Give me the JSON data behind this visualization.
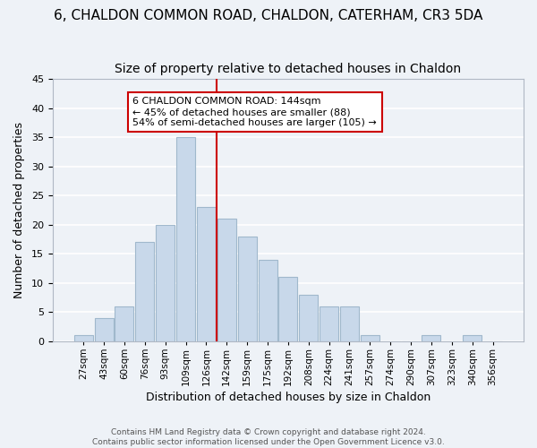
{
  "title": "6, CHALDON COMMON ROAD, CHALDON, CATERHAM, CR3 5DA",
  "subtitle": "Size of property relative to detached houses in Chaldon",
  "xlabel": "Distribution of detached houses by size in Chaldon",
  "ylabel": "Number of detached properties",
  "bar_labels": [
    "27sqm",
    "43sqm",
    "60sqm",
    "76sqm",
    "93sqm",
    "109sqm",
    "126sqm",
    "142sqm",
    "159sqm",
    "175sqm",
    "192sqm",
    "208sqm",
    "224sqm",
    "241sqm",
    "257sqm",
    "274sqm",
    "290sqm",
    "307sqm",
    "323sqm",
    "340sqm",
    "356sqm"
  ],
  "bar_values": [
    1,
    4,
    6,
    17,
    20,
    35,
    23,
    21,
    18,
    14,
    11,
    8,
    6,
    6,
    1,
    0,
    0,
    1,
    0,
    1,
    0
  ],
  "bar_color": "#c8d8ea",
  "bar_edge_color": "#a0b8cc",
  "vline_color": "#cc0000",
  "ylim": [
    0,
    45
  ],
  "yticks": [
    0,
    5,
    10,
    15,
    20,
    25,
    30,
    35,
    40,
    45
  ],
  "annotation_box_title": "6 CHALDON COMMON ROAD: 144sqm",
  "annotation_line1": "← 45% of detached houses are smaller (88)",
  "annotation_line2": "54% of semi-detached houses are larger (105) →",
  "annotation_box_color": "#ffffff",
  "annotation_box_edge": "#cc0000",
  "footer_line1": "Contains HM Land Registry data © Crown copyright and database right 2024.",
  "footer_line2": "Contains public sector information licensed under the Open Government Licence v3.0.",
  "bg_color": "#eef2f7",
  "grid_color": "#ffffff",
  "title_fontsize": 11,
  "subtitle_fontsize": 10
}
